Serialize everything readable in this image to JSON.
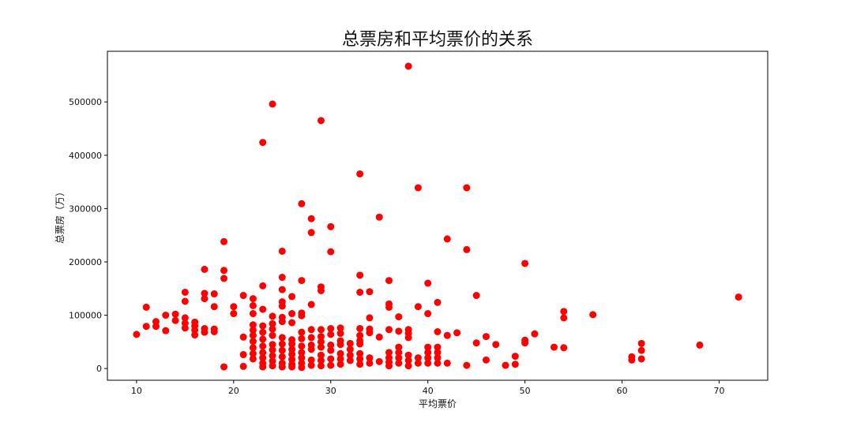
{
  "colors": {
    "point": "#ff0000",
    "axis": "#000000",
    "background": "#ffffff"
  },
  "chart_data": {
    "type": "scatter",
    "title": "总票房和平均票价的关系",
    "xlabel": "平均票价",
    "ylabel": "总票房（万）",
    "xlim": [
      7,
      75
    ],
    "ylim": [
      -22000,
      595000
    ],
    "xticks": [
      10,
      20,
      30,
      40,
      50,
      60,
      70
    ],
    "xtick_labels": [
      "10",
      "20",
      "30",
      "40",
      "50",
      "60",
      "70"
    ],
    "yticks": [
      0,
      100000,
      200000,
      300000,
      400000,
      500000
    ],
    "ytick_labels": [
      "0",
      "100000",
      "200000",
      "300000",
      "400000",
      "500000"
    ],
    "grid": false,
    "series": [
      {
        "color": "#ff0000",
        "points": [
          [
            10,
            64000
          ],
          [
            11,
            115000
          ],
          [
            11,
            79000
          ],
          [
            12,
            88000
          ],
          [
            12,
            79000
          ],
          [
            13,
            100000
          ],
          [
            13,
            71000
          ],
          [
            14,
            102000
          ],
          [
            14,
            90000
          ],
          [
            15,
            143000
          ],
          [
            15,
            126000
          ],
          [
            15,
            95000
          ],
          [
            15,
            85000
          ],
          [
            15,
            76000
          ],
          [
            16,
            87000
          ],
          [
            16,
            80000
          ],
          [
            16,
            72000
          ],
          [
            16,
            63000
          ],
          [
            17,
            186000
          ],
          [
            17,
            141000
          ],
          [
            17,
            131000
          ],
          [
            17,
            75000
          ],
          [
            17,
            68000
          ],
          [
            18,
            140000
          ],
          [
            18,
            116000
          ],
          [
            18,
            74000
          ],
          [
            18,
            69000
          ],
          [
            19,
            238000
          ],
          [
            19,
            184000
          ],
          [
            19,
            169000
          ],
          [
            19,
            3000
          ],
          [
            20,
            116000
          ],
          [
            20,
            103000
          ],
          [
            21,
            137000
          ],
          [
            21,
            59000
          ],
          [
            21,
            26000
          ],
          [
            21,
            4000
          ],
          [
            22,
            131000
          ],
          [
            22,
            118000
          ],
          [
            22,
            103000
          ],
          [
            22,
            82000
          ],
          [
            22,
            72000
          ],
          [
            22,
            62000
          ],
          [
            22,
            51000
          ],
          [
            22,
            39000
          ],
          [
            22,
            28000
          ],
          [
            22,
            18000
          ],
          [
            23,
            424000
          ],
          [
            23,
            155000
          ],
          [
            23,
            111000
          ],
          [
            23,
            80000
          ],
          [
            23,
            68000
          ],
          [
            23,
            55000
          ],
          [
            23,
            42000
          ],
          [
            23,
            30000
          ],
          [
            23,
            20000
          ],
          [
            23,
            10000
          ],
          [
            23,
            3000
          ],
          [
            24,
            496000
          ],
          [
            24,
            98000
          ],
          [
            24,
            84000
          ],
          [
            24,
            74000
          ],
          [
            24,
            62000
          ],
          [
            24,
            45000
          ],
          [
            24,
            35000
          ],
          [
            24,
            24000
          ],
          [
            24,
            14000
          ],
          [
            24,
            5000
          ],
          [
            25,
            220000
          ],
          [
            25,
            171000
          ],
          [
            25,
            148000
          ],
          [
            25,
            125000
          ],
          [
            25,
            117000
          ],
          [
            25,
            96000
          ],
          [
            25,
            88000
          ],
          [
            25,
            58000
          ],
          [
            25,
            46000
          ],
          [
            25,
            34000
          ],
          [
            25,
            22000
          ],
          [
            25,
            10000
          ],
          [
            25,
            3000
          ],
          [
            26,
            135000
          ],
          [
            26,
            103000
          ],
          [
            26,
            86000
          ],
          [
            26,
            54000
          ],
          [
            26,
            46000
          ],
          [
            26,
            36000
          ],
          [
            26,
            27000
          ],
          [
            26,
            17000
          ],
          [
            26,
            8000
          ],
          [
            26,
            3000
          ],
          [
            27,
            309000
          ],
          [
            27,
            165000
          ],
          [
            27,
            104000
          ],
          [
            27,
            99000
          ],
          [
            27,
            68000
          ],
          [
            27,
            56000
          ],
          [
            27,
            42000
          ],
          [
            27,
            30000
          ],
          [
            27,
            20000
          ],
          [
            27,
            10000
          ],
          [
            27,
            2000
          ],
          [
            28,
            281000
          ],
          [
            28,
            255000
          ],
          [
            28,
            120000
          ],
          [
            28,
            73000
          ],
          [
            28,
            58000
          ],
          [
            28,
            44000
          ],
          [
            28,
            36000
          ],
          [
            28,
            16000
          ],
          [
            28,
            6000
          ],
          [
            29,
            465000
          ],
          [
            29,
            153000
          ],
          [
            29,
            146000
          ],
          [
            29,
            73000
          ],
          [
            29,
            60000
          ],
          [
            29,
            50000
          ],
          [
            29,
            40000
          ],
          [
            29,
            25000
          ],
          [
            29,
            15000
          ],
          [
            29,
            5000
          ],
          [
            30,
            266000
          ],
          [
            30,
            219000
          ],
          [
            30,
            75000
          ],
          [
            30,
            64000
          ],
          [
            30,
            44000
          ],
          [
            30,
            34000
          ],
          [
            30,
            18000
          ],
          [
            30,
            6000
          ],
          [
            31,
            76000
          ],
          [
            31,
            66000
          ],
          [
            31,
            52000
          ],
          [
            31,
            45000
          ],
          [
            31,
            28000
          ],
          [
            31,
            18000
          ],
          [
            31,
            8000
          ],
          [
            32,
            47000
          ],
          [
            32,
            36000
          ],
          [
            32,
            25000
          ],
          [
            32,
            15000
          ],
          [
            33,
            365000
          ],
          [
            33,
            175000
          ],
          [
            33,
            143000
          ],
          [
            33,
            75000
          ],
          [
            33,
            62000
          ],
          [
            33,
            52000
          ],
          [
            33,
            46000
          ],
          [
            33,
            28000
          ],
          [
            33,
            18000
          ],
          [
            33,
            8000
          ],
          [
            34,
            144000
          ],
          [
            34,
            95000
          ],
          [
            34,
            74000
          ],
          [
            34,
            67000
          ],
          [
            34,
            20000
          ],
          [
            34,
            10000
          ],
          [
            35,
            284000
          ],
          [
            35,
            59000
          ],
          [
            35,
            13000
          ],
          [
            36,
            165000
          ],
          [
            36,
            121000
          ],
          [
            36,
            115000
          ],
          [
            36,
            73000
          ],
          [
            36,
            30000
          ],
          [
            36,
            20000
          ],
          [
            36,
            12000
          ],
          [
            36,
            5000
          ],
          [
            37,
            97000
          ],
          [
            37,
            70000
          ],
          [
            37,
            40000
          ],
          [
            37,
            30000
          ],
          [
            37,
            20000
          ],
          [
            37,
            10000
          ],
          [
            38,
            567000
          ],
          [
            38,
            73000
          ],
          [
            38,
            66000
          ],
          [
            38,
            58000
          ],
          [
            38,
            25000
          ],
          [
            38,
            15000
          ],
          [
            38,
            5000
          ],
          [
            39,
            339000
          ],
          [
            39,
            116000
          ],
          [
            39,
            20000
          ],
          [
            39,
            10000
          ],
          [
            40,
            160000
          ],
          [
            40,
            103000
          ],
          [
            40,
            40000
          ],
          [
            40,
            30000
          ],
          [
            40,
            20000
          ],
          [
            40,
            10000
          ],
          [
            41,
            124000
          ],
          [
            41,
            69000
          ],
          [
            41,
            40000
          ],
          [
            41,
            30000
          ],
          [
            41,
            20000
          ],
          [
            41,
            10000
          ],
          [
            42,
            243000
          ],
          [
            42,
            62000
          ],
          [
            42,
            10000
          ],
          [
            43,
            67000
          ],
          [
            44,
            339000
          ],
          [
            44,
            223000
          ],
          [
            44,
            6000
          ],
          [
            45,
            137000
          ],
          [
            45,
            48000
          ],
          [
            46,
            60000
          ],
          [
            46,
            16000
          ],
          [
            47,
            45000
          ],
          [
            48,
            6000
          ],
          [
            49,
            23000
          ],
          [
            49,
            8000
          ],
          [
            50,
            197000
          ],
          [
            50,
            53000
          ],
          [
            50,
            48000
          ],
          [
            51,
            65000
          ],
          [
            53,
            40000
          ],
          [
            54,
            107000
          ],
          [
            54,
            95000
          ],
          [
            54,
            39000
          ],
          [
            57,
            101000
          ],
          [
            61,
            22000
          ],
          [
            61,
            16000
          ],
          [
            62,
            47000
          ],
          [
            62,
            34000
          ],
          [
            62,
            18000
          ],
          [
            68,
            44000
          ],
          [
            72,
            134000
          ]
        ]
      }
    ]
  }
}
